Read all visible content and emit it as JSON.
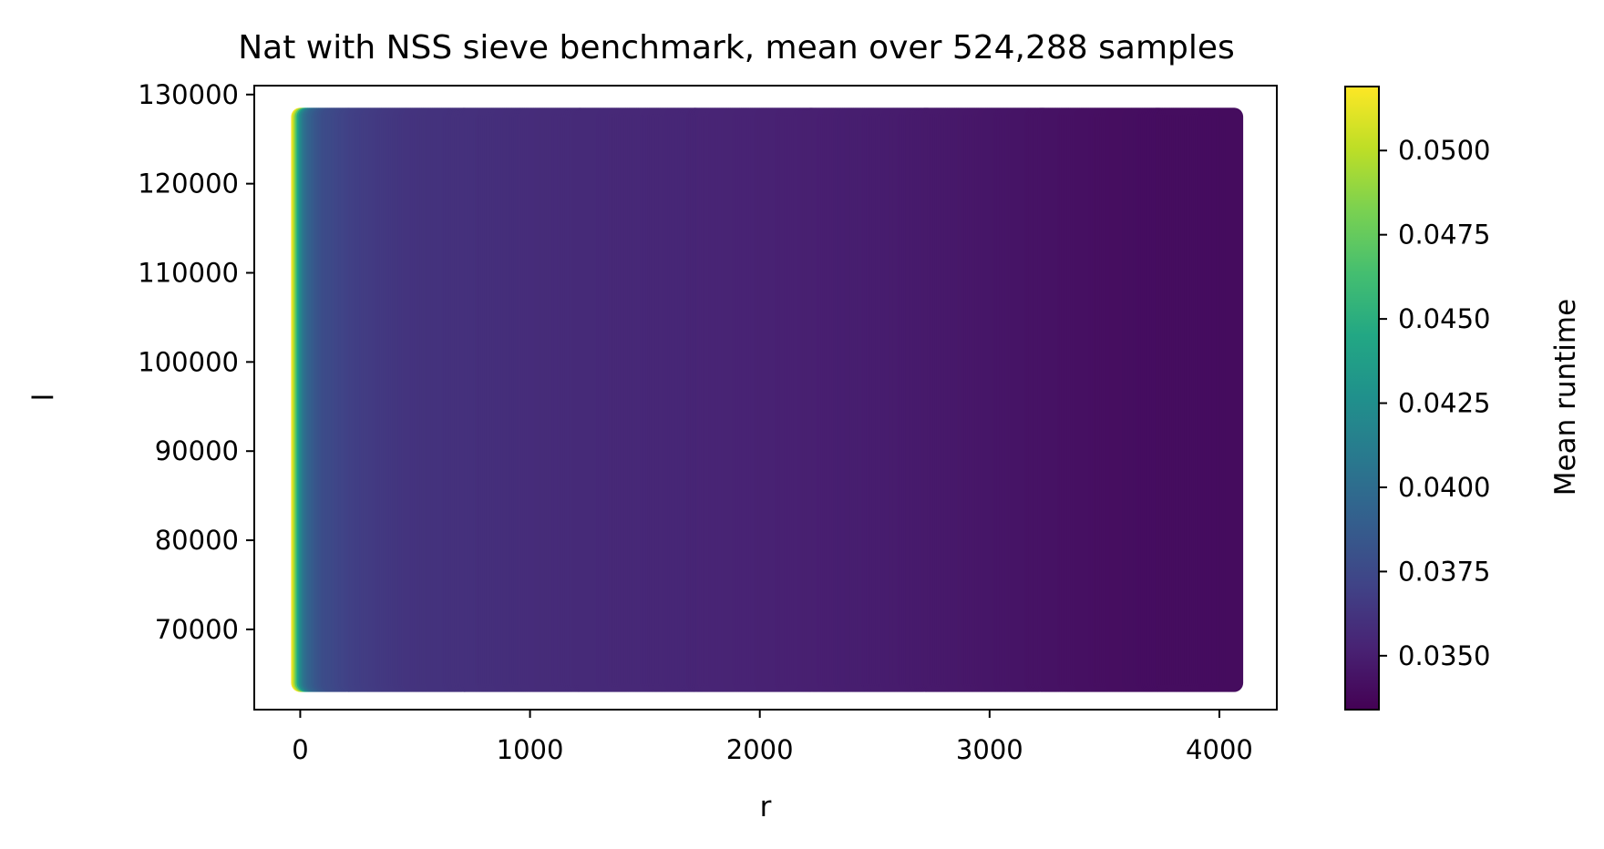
{
  "chart_data": {
    "type": "scatter",
    "title": "Nat with NSS sieve benchmark, mean over 524,288 samples",
    "xlabel": "r",
    "ylabel": "l",
    "xlim": [
      -200,
      4250
    ],
    "ylim": [
      61000,
      131000
    ],
    "xticks": [
      0,
      1000,
      2000,
      3000,
      4000
    ],
    "xtick_labels": [
      "0",
      "1000",
      "2000",
      "3000",
      "4000"
    ],
    "yticks": [
      70000,
      80000,
      90000,
      100000,
      110000,
      120000,
      130000
    ],
    "ytick_labels": [
      "70000",
      "80000",
      "90000",
      "100000",
      "110000",
      "120000",
      "130000"
    ],
    "grid": false,
    "x_range": [
      0,
      4064
    ],
    "y_range": [
      64000,
      127500
    ],
    "colorbar": {
      "label": "Mean runtime",
      "colormap": "viridis",
      "range": [
        0.0334,
        0.0519
      ],
      "ticks": [
        0.035,
        0.0375,
        0.04,
        0.0425,
        0.045,
        0.0475,
        0.05
      ],
      "tick_labels": [
        "0.0350",
        "0.0375",
        "0.0400",
        "0.0425",
        "0.0450",
        "0.0475",
        "0.0500"
      ]
    },
    "profile": {
      "r": [
        0,
        8,
        16,
        24,
        32,
        48,
        64,
        96,
        128,
        192,
        256,
        384,
        512,
        768,
        1024,
        1536,
        2048,
        2560,
        3072,
        3584,
        4064
      ],
      "mean_runtime": [
        0.0515,
        0.0495,
        0.047,
        0.0445,
        0.0425,
        0.0405,
        0.0395,
        0.0385,
        0.0378,
        0.0373,
        0.0369,
        0.0365,
        0.0362,
        0.036,
        0.0358,
        0.0355,
        0.0352,
        0.0349,
        0.0345,
        0.0341,
        0.034
      ]
    }
  }
}
